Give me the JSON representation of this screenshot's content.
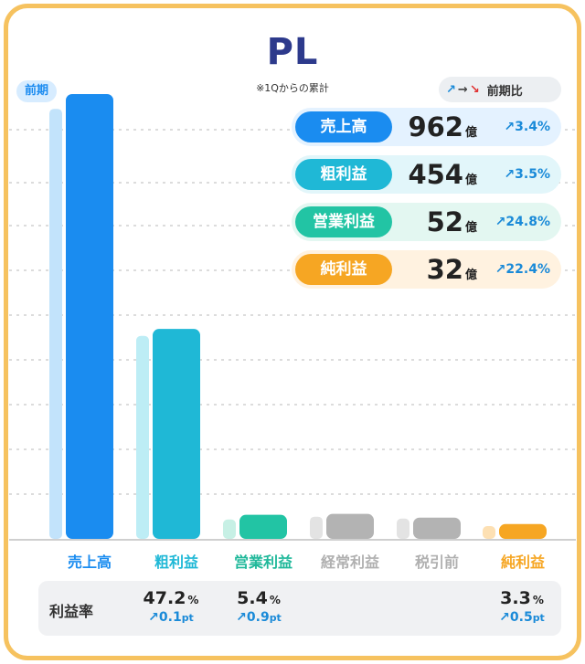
{
  "title": "PL",
  "subtitle": "※1Qからの累計",
  "prev_tag": "前期",
  "legend": {
    "up_arrow": "↗",
    "flat_arrow": "→",
    "down_arrow": "↘",
    "label": "前期比"
  },
  "kpis": [
    {
      "name": "売上高",
      "value": "962",
      "unit": "億",
      "growth": "↗3.4%",
      "badge_color": "#1a8cf0",
      "row_bg": "#e4f2ff"
    },
    {
      "name": "粗利益",
      "value": "454",
      "unit": "億",
      "growth": "↗3.5%",
      "badge_color": "#1fb8d6",
      "row_bg": "#e2f6fa"
    },
    {
      "name": "営業利益",
      "value": "52",
      "unit": "億",
      "growth": "↗24.8%",
      "badge_color": "#22c4a4",
      "row_bg": "#e3f7f1"
    },
    {
      "name": "純利益",
      "value": "32",
      "unit": "億",
      "growth": "↗22.4%",
      "badge_color": "#f6a623",
      "row_bg": "#fff2e0"
    }
  ],
  "margin": {
    "title": "利益率",
    "items": [
      {
        "value": "47.2",
        "pct": "%",
        "change": "↗0.1",
        "pt": "pt"
      },
      {
        "value": "5.4",
        "pct": "%",
        "change": "↗0.9",
        "pt": "pt"
      },
      {
        "value": "3.3",
        "pct": "%",
        "change": "↗0.5",
        "pt": "pt"
      }
    ]
  },
  "chart_data": {
    "type": "bar",
    "title": "PL",
    "subtitle": "※1Qからの累計",
    "categories": [
      "売上高",
      "粗利益",
      "営業利益",
      "経常利益",
      "税引前",
      "純利益"
    ],
    "series": [
      {
        "name": "前期",
        "values": [
          930,
          439,
          42,
          48,
          44,
          26
        ]
      },
      {
        "name": "",
        "values": [
          962,
          454,
          52,
          54,
          46,
          32
        ]
      }
    ],
    "ylim": [
      0,
      962
    ],
    "grid": true,
    "colors": {
      "current": [
        "#1a8cf0",
        "#1fb8d6",
        "#22c4a4",
        "#b3b3b3",
        "#b3b3b3",
        "#f6a623"
      ],
      "previous": [
        "#c2e3fb",
        "#bdedf5",
        "#c7f0e5",
        "#e3e3e3",
        "#e3e3e3",
        "#fde0b3"
      ],
      "labels": [
        "#1a8cf0",
        "#1fb8d6",
        "#1fb89a",
        "#b0b0b0",
        "#b0b0b0",
        "#f6a623"
      ]
    }
  }
}
